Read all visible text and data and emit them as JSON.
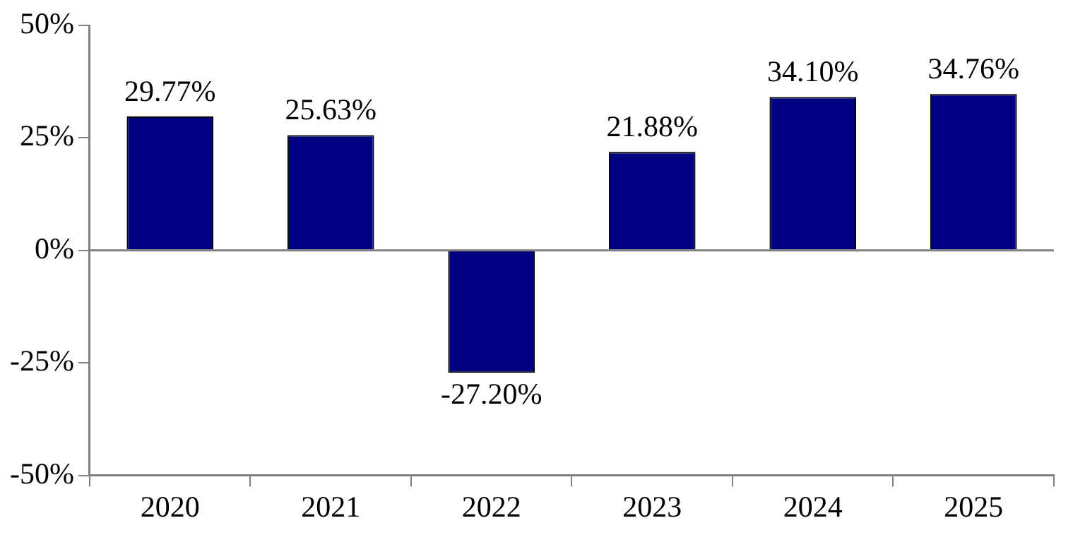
{
  "chart_data": {
    "type": "bar",
    "categories": [
      "2020",
      "2021",
      "2022",
      "2023",
      "2024",
      "2025"
    ],
    "values": [
      29.77,
      25.63,
      -27.2,
      21.88,
      34.1,
      34.76
    ],
    "value_labels": [
      "29.77%",
      "25.63%",
      "-27.20%",
      "21.88%",
      "34.10%",
      "34.76%"
    ],
    "color": "#000080",
    "ylim": [
      -50,
      50
    ],
    "yticks": [
      {
        "value": -50,
        "label": "-50%"
      },
      {
        "value": -25,
        "label": "-25%"
      },
      {
        "value": 0,
        "label": "0%"
      },
      {
        "value": 25,
        "label": "25%"
      },
      {
        "value": 50,
        "label": "50%"
      }
    ],
    "ref_lines": [
      {
        "axis": "y",
        "value": 0,
        "color": "#808080"
      }
    ],
    "grid": false,
    "legend": false
  }
}
